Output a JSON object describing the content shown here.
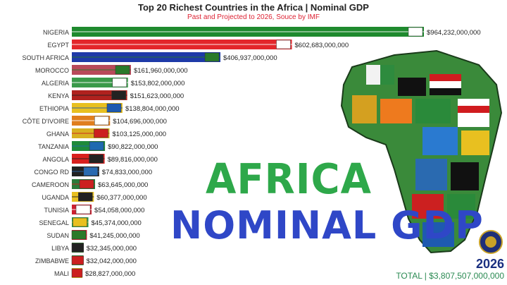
{
  "chart_data": {
    "type": "bar",
    "title": "Top 20 Richest Countries in the Africa | Nominal GDP",
    "subtitle": "Past and Projected to 2026, Souce by IMF",
    "categories": [
      "NIGERIA",
      "EGYPT",
      "SOUTH AFRICA",
      "MOROCCO",
      "ALGERIA",
      "KENYA",
      "ETHIOPIA",
      "CÔTE D'IVOIRE",
      "GHANA",
      "TANZANIA",
      "ANGOLA",
      "CONGO RD",
      "CAMEROON",
      "UGANDA",
      "TUNISIA",
      "SENEGAL",
      "SUDAN",
      "LIBYA",
      "ZIMBABWE",
      "MALI"
    ],
    "values": [
      964232000000,
      602683000000,
      406937000000,
      161960000000,
      153802000000,
      151623000000,
      138804000000,
      104696000000,
      103125000000,
      90822000000,
      89816000000,
      74833000000,
      63645000000,
      60377000000,
      54058000000,
      45374000000,
      41245000000,
      32345000000,
      32042000000,
      28827000000
    ],
    "value_labels": [
      "$964,232,000,000",
      "$602,683,000,000",
      "$406,937,000,000",
      "$161,960,000,000",
      "$153,802,000,000",
      "$151,623,000,000",
      "$138,804,000,000",
      "$104,696,000,000",
      "$103,125,000,000",
      "$90,822,000,000",
      "$89,816,000,000",
      "$74,833,000,000",
      "$63,645,000,000",
      "$60,377,000,000",
      "$54,058,000,000",
      "$45,374,000,000",
      "$41,245,000,000",
      "$32,345,000,000",
      "$32,042,000,000",
      "$28,827,000,000"
    ],
    "colors": [
      "#1e8a2e",
      "#e3262b",
      "#1e3aa8",
      "#b84a5a",
      "#3a9a4a",
      "#b0221e",
      "#e8c020",
      "#e07e1e",
      "#d8b020",
      "#1e8a3a",
      "#d8201e",
      "#222222",
      "#2a7a3a",
      "#e8c020",
      "#cc2030",
      "#2a9a4a",
      "#cc2030",
      "#2a6a2a",
      "#3a8a3a",
      "#e8c020"
    ],
    "accent_colors": [
      "#ffffff",
      "#ffffff",
      "#2a7a2a",
      "#2a7a2a",
      "#ffffff",
      "#222222",
      "#1e5ab0",
      "#ffffff",
      "#cc2020",
      "#1e6ab0",
      "#222222",
      "#2a6ab0",
      "#cc2020",
      "#222222",
      "#ffffff",
      "#e8c020",
      "#2a7a2a",
      "#222222",
      "#cc2020",
      "#cc2020"
    ]
  },
  "overlay": {
    "headline1": "AFRICA",
    "headline2": "NOMINAL GDP",
    "year": "2026",
    "total": "TOTAL | $3,807,507,000,000"
  }
}
